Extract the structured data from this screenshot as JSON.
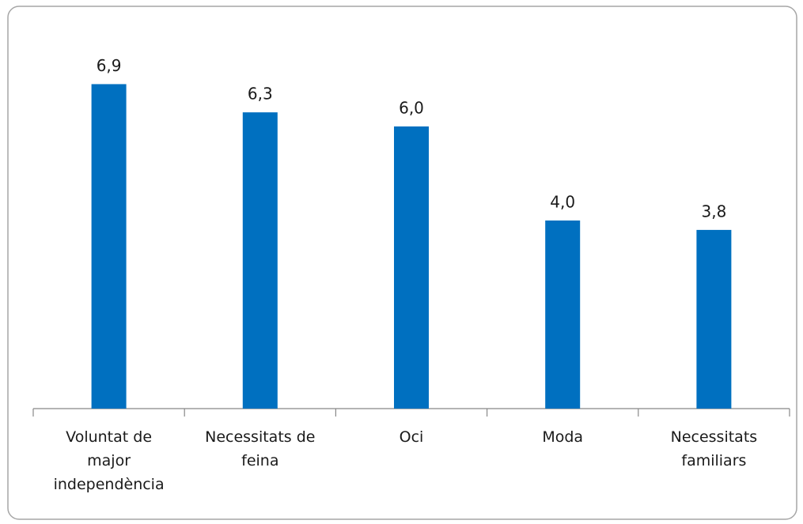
{
  "chart_data": {
    "type": "bar",
    "categories": [
      "Voluntat de\nmajor\nindependència",
      "Necessitats de\nfeina",
      "Oci",
      "Moda",
      "Necessitats\nfamiliars"
    ],
    "values": [
      6.9,
      6.3,
      6.0,
      4.0,
      3.8
    ],
    "value_labels": [
      "6,9",
      "6,3",
      "6,0",
      "4,0",
      "3,8"
    ],
    "color": "#0070c0",
    "ylim": [
      0,
      8
    ]
  }
}
